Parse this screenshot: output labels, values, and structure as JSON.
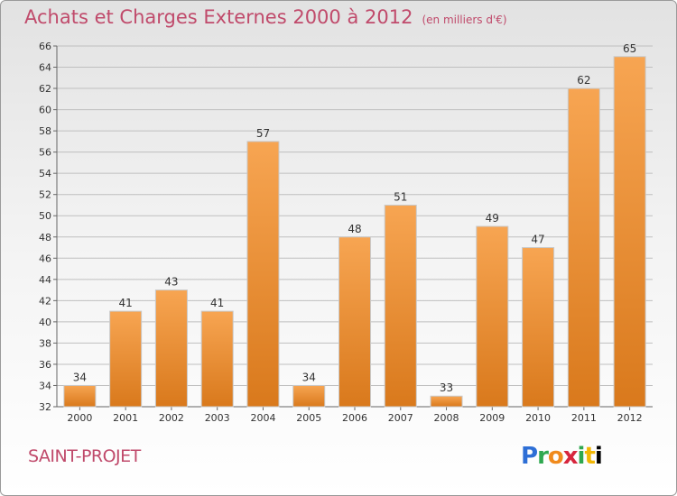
{
  "header": {
    "title": "Achats et Charges Externes 2000 à 2012",
    "subtitle": "(en milliers d'€)"
  },
  "commune": "SAINT-PROJET",
  "brand": {
    "logo_letters": [
      "P",
      "r",
      "o",
      "x",
      "i",
      "t",
      "i"
    ]
  },
  "colors": {
    "bar_top": "#f7a552",
    "bar_bottom": "#d9791c",
    "grid": "#bfbfbf",
    "title": "#c04a6b"
  },
  "chart_data": {
    "type": "bar",
    "categories": [
      "2000",
      "2001",
      "2002",
      "2003",
      "2004",
      "2005",
      "2006",
      "2007",
      "2008",
      "2009",
      "2010",
      "2011",
      "2012"
    ],
    "values": [
      34,
      41,
      43,
      41,
      57,
      34,
      48,
      51,
      33,
      49,
      47,
      62,
      65
    ],
    "ylim": [
      32,
      66
    ],
    "yticks": [
      32,
      34,
      36,
      38,
      40,
      42,
      44,
      46,
      48,
      50,
      52,
      54,
      56,
      58,
      60,
      62,
      64,
      66
    ],
    "grid": true,
    "xlabel": "",
    "ylabel": ""
  }
}
